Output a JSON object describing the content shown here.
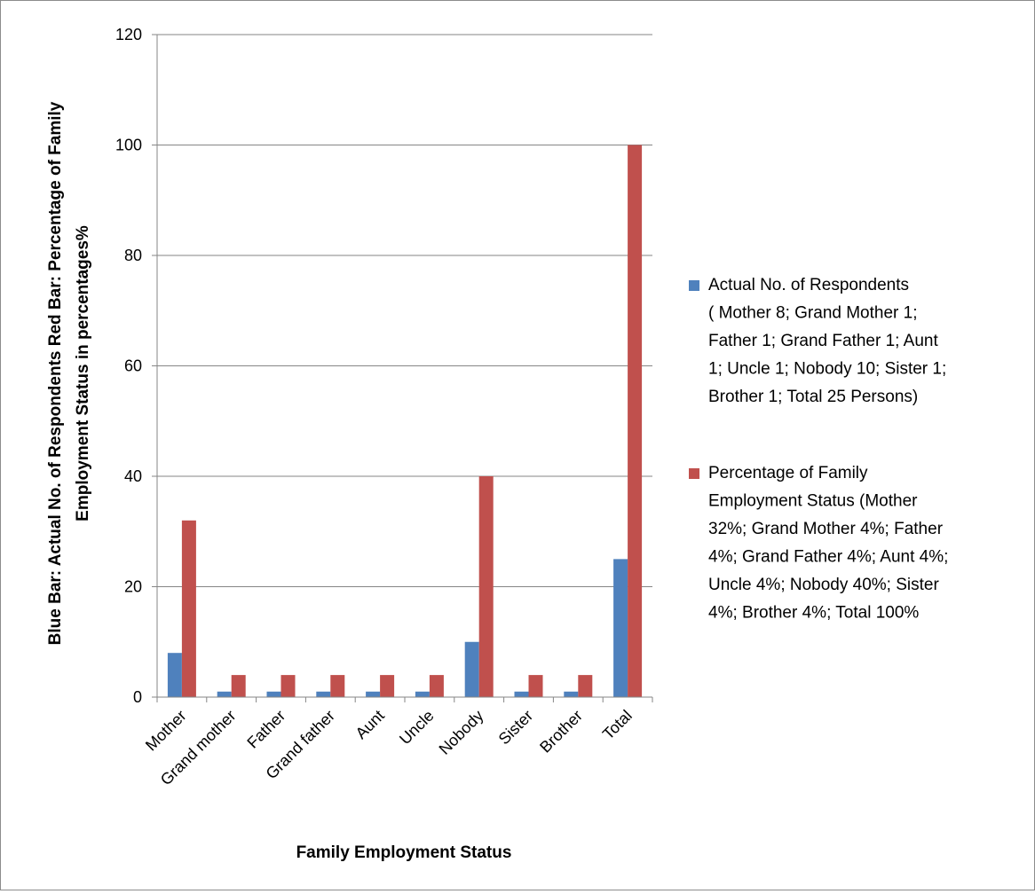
{
  "chart_data": {
    "type": "bar",
    "title": "",
    "xlabel": "Family Employment Status",
    "ylabel_lines": [
      "Blue Bar: Actual No. of Respondents Red Bar: Percentage of Family",
      "Employment Status in percentages%"
    ],
    "ylim": [
      0,
      120
    ],
    "yticks": [
      "0",
      "20",
      "40",
      "60",
      "80",
      "100",
      "120"
    ],
    "grid": true,
    "legend_position": "right",
    "categories": [
      "Mother",
      "Grand mother",
      "Father",
      "Grand father",
      "Aunt",
      "Uncle",
      "Nobody",
      "Sister",
      "Brother",
      "Total"
    ],
    "series": [
      {
        "color": "#4f81bd",
        "legend_lines": [
          "Actual No. of Respondents",
          "( Mother 8; Grand Mother 1;",
          "Father 1; Grand Father 1; Aunt",
          "1; Uncle 1; Nobody 10; Sister 1;",
          "Brother 1; Total 25 Persons)"
        ],
        "values": [
          8,
          1,
          1,
          1,
          1,
          1,
          10,
          1,
          1,
          25
        ]
      },
      {
        "color": "#c0504d",
        "legend_lines": [
          "Percentage of Family",
          "Employment Status (Mother",
          "32%; Grand Mother 4%; Father",
          "4%; Grand Father 4%; Aunt 4%;",
          "Uncle 4%; Nobody 40%; Sister",
          "4%; Brother 4%; Total 100%"
        ],
        "values": [
          32,
          4,
          4,
          4,
          4,
          4,
          40,
          4,
          4,
          100
        ]
      }
    ]
  }
}
